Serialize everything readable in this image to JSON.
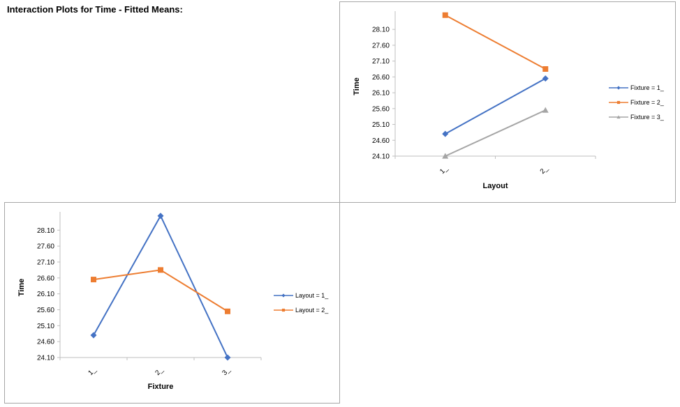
{
  "page": {
    "title": "Interaction Plots for Time - Fitted Means:"
  },
  "chart_data": [
    {
      "type": "line",
      "xlabel": "Layout",
      "ylabel": "Time",
      "categories": [
        "1_",
        "2_"
      ],
      "yticks": [
        "24.10",
        "24.60",
        "25.10",
        "25.60",
        "26.10",
        "26.60",
        "27.10",
        "27.60",
        "28.10"
      ],
      "ylim": [
        24.1,
        28.5
      ],
      "grid": false,
      "legend_position": "right",
      "series": [
        {
          "name": "Fixture = 1_",
          "values": [
            24.8,
            26.55
          ],
          "color": "#4472c4",
          "marker": "diamond"
        },
        {
          "name": "Fixture = 2_",
          "values": [
            28.55,
            26.85
          ],
          "color": "#ed7d31",
          "marker": "square"
        },
        {
          "name": "Fixture = 3_",
          "values": [
            24.1,
            25.55
          ],
          "color": "#a5a5a5",
          "marker": "triangle"
        }
      ]
    },
    {
      "type": "line",
      "xlabel": "Fixture",
      "ylabel": "Time",
      "categories": [
        "1_",
        "2_",
        "3_"
      ],
      "yticks": [
        "24.10",
        "24.60",
        "25.10",
        "25.60",
        "26.10",
        "26.60",
        "27.10",
        "27.60",
        "28.10"
      ],
      "ylim": [
        24.1,
        28.5
      ],
      "grid": false,
      "legend_position": "right",
      "series": [
        {
          "name": "Layout = 1_",
          "values": [
            24.8,
            28.55,
            24.1
          ],
          "color": "#4472c4",
          "marker": "diamond"
        },
        {
          "name": "Layout = 2_",
          "values": [
            26.55,
            26.85,
            25.55
          ],
          "color": "#ed7d31",
          "marker": "square"
        }
      ]
    }
  ]
}
